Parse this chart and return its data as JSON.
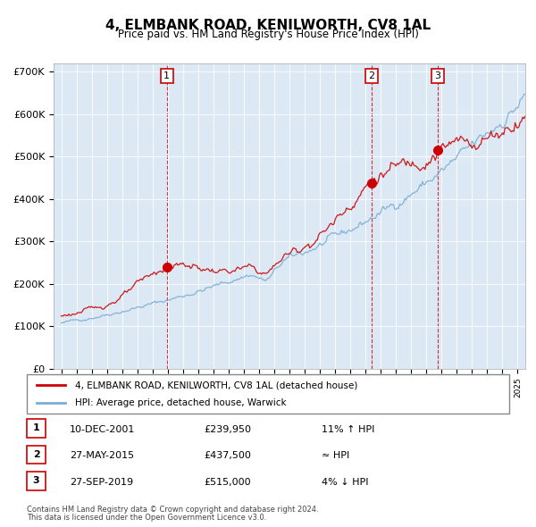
{
  "title": "4, ELMBANK ROAD, KENILWORTH, CV8 1AL",
  "subtitle": "Price paid vs. HM Land Registry's House Price Index (HPI)",
  "legend_property": "4, ELMBANK ROAD, KENILWORTH, CV8 1AL (detached house)",
  "legend_hpi": "HPI: Average price, detached house, Warwick",
  "footer1": "Contains HM Land Registry data © Crown copyright and database right 2024.",
  "footer2": "This data is licensed under the Open Government Licence v3.0.",
  "transactions": [
    {
      "num": 1,
      "date": "10-DEC-2001",
      "price": 239950,
      "rel": "11% ↑ HPI"
    },
    {
      "num": 2,
      "date": "27-MAY-2015",
      "price": 437500,
      "rel": "≈ HPI"
    },
    {
      "num": 3,
      "date": "27-SEP-2019",
      "price": 515000,
      "rel": "4% ↓ HPI"
    }
  ],
  "transaction_dates_num": [
    2001.94,
    2015.4,
    2019.74
  ],
  "transaction_prices": [
    239950,
    437500,
    515000
  ],
  "ylim": [
    0,
    720000
  ],
  "yticks": [
    0,
    100000,
    200000,
    300000,
    400000,
    500000,
    600000,
    700000
  ],
  "xlim_start": 1994.5,
  "xlim_end": 2025.5,
  "bg_color": "#dce9f5",
  "plot_bg_color": "#dce9f5",
  "red_color": "#cc0000",
  "blue_color": "#7aadd4",
  "grid_color": "#aaaacc"
}
